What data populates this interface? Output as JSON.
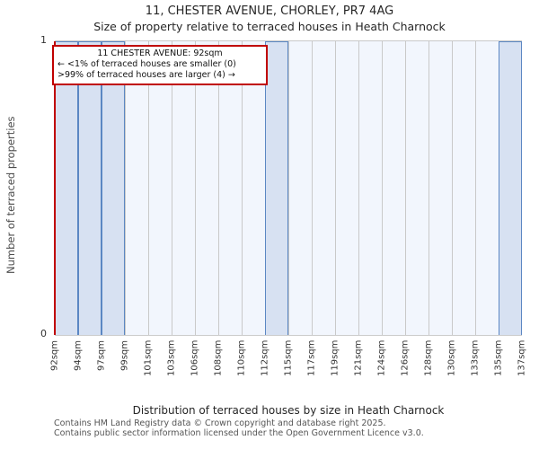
{
  "title": "11, CHESTER AVENUE, CHORLEY, PR7 4AG",
  "subtitle": "Size of property relative to terraced houses in Heath Charnock",
  "annotation": {
    "line1": "11 CHESTER AVENUE: 92sqm",
    "line2": "← <1% of terraced houses are smaller (0)",
    "line3": ">99% of terraced houses are larger (4) →"
  },
  "chart_data": {
    "type": "bar",
    "title": "Size of property relative to terraced houses in Heath Charnock",
    "categories": [
      "92sqm",
      "94sqm",
      "97sqm",
      "99sqm",
      "101sqm",
      "103sqm",
      "106sqm",
      "108sqm",
      "110sqm",
      "112sqm",
      "115sqm",
      "117sqm",
      "119sqm",
      "121sqm",
      "124sqm",
      "126sqm",
      "128sqm",
      "130sqm",
      "133sqm",
      "135sqm",
      "137sqm"
    ],
    "bin_edges_sqm": [
      92,
      94,
      97,
      99,
      101,
      103,
      106,
      108,
      110,
      112,
      115,
      117,
      119,
      121,
      124,
      126,
      128,
      130,
      133,
      135,
      137
    ],
    "values": [
      1,
      1,
      1,
      0,
      0,
      0,
      0,
      0,
      0,
      1,
      0,
      0,
      0,
      0,
      0,
      0,
      0,
      0,
      0,
      1
    ],
    "xlabel": "Distribution of terraced houses by size in Heath Charnock",
    "ylabel": "Number of terraced properties",
    "ylim": [
      0,
      1
    ],
    "yticks": [
      "0",
      "1"
    ],
    "marker": {
      "value_sqm": 92,
      "position": "left-edge"
    },
    "colors": {
      "bar_fill": "#d7e1f2",
      "bar_border": "#5b87c3",
      "plot_bg": "#f2f6fd",
      "gridline": "#c9c9c9",
      "marker_line": "#c00000",
      "annotation_border": "#c00000"
    },
    "legend": null,
    "grid": "vertical-only"
  },
  "footer": {
    "line1": "Contains HM Land Registry data © Crown copyright and database right 2025.",
    "line2": "Contains public sector information licensed under the Open Government Licence v3.0."
  }
}
